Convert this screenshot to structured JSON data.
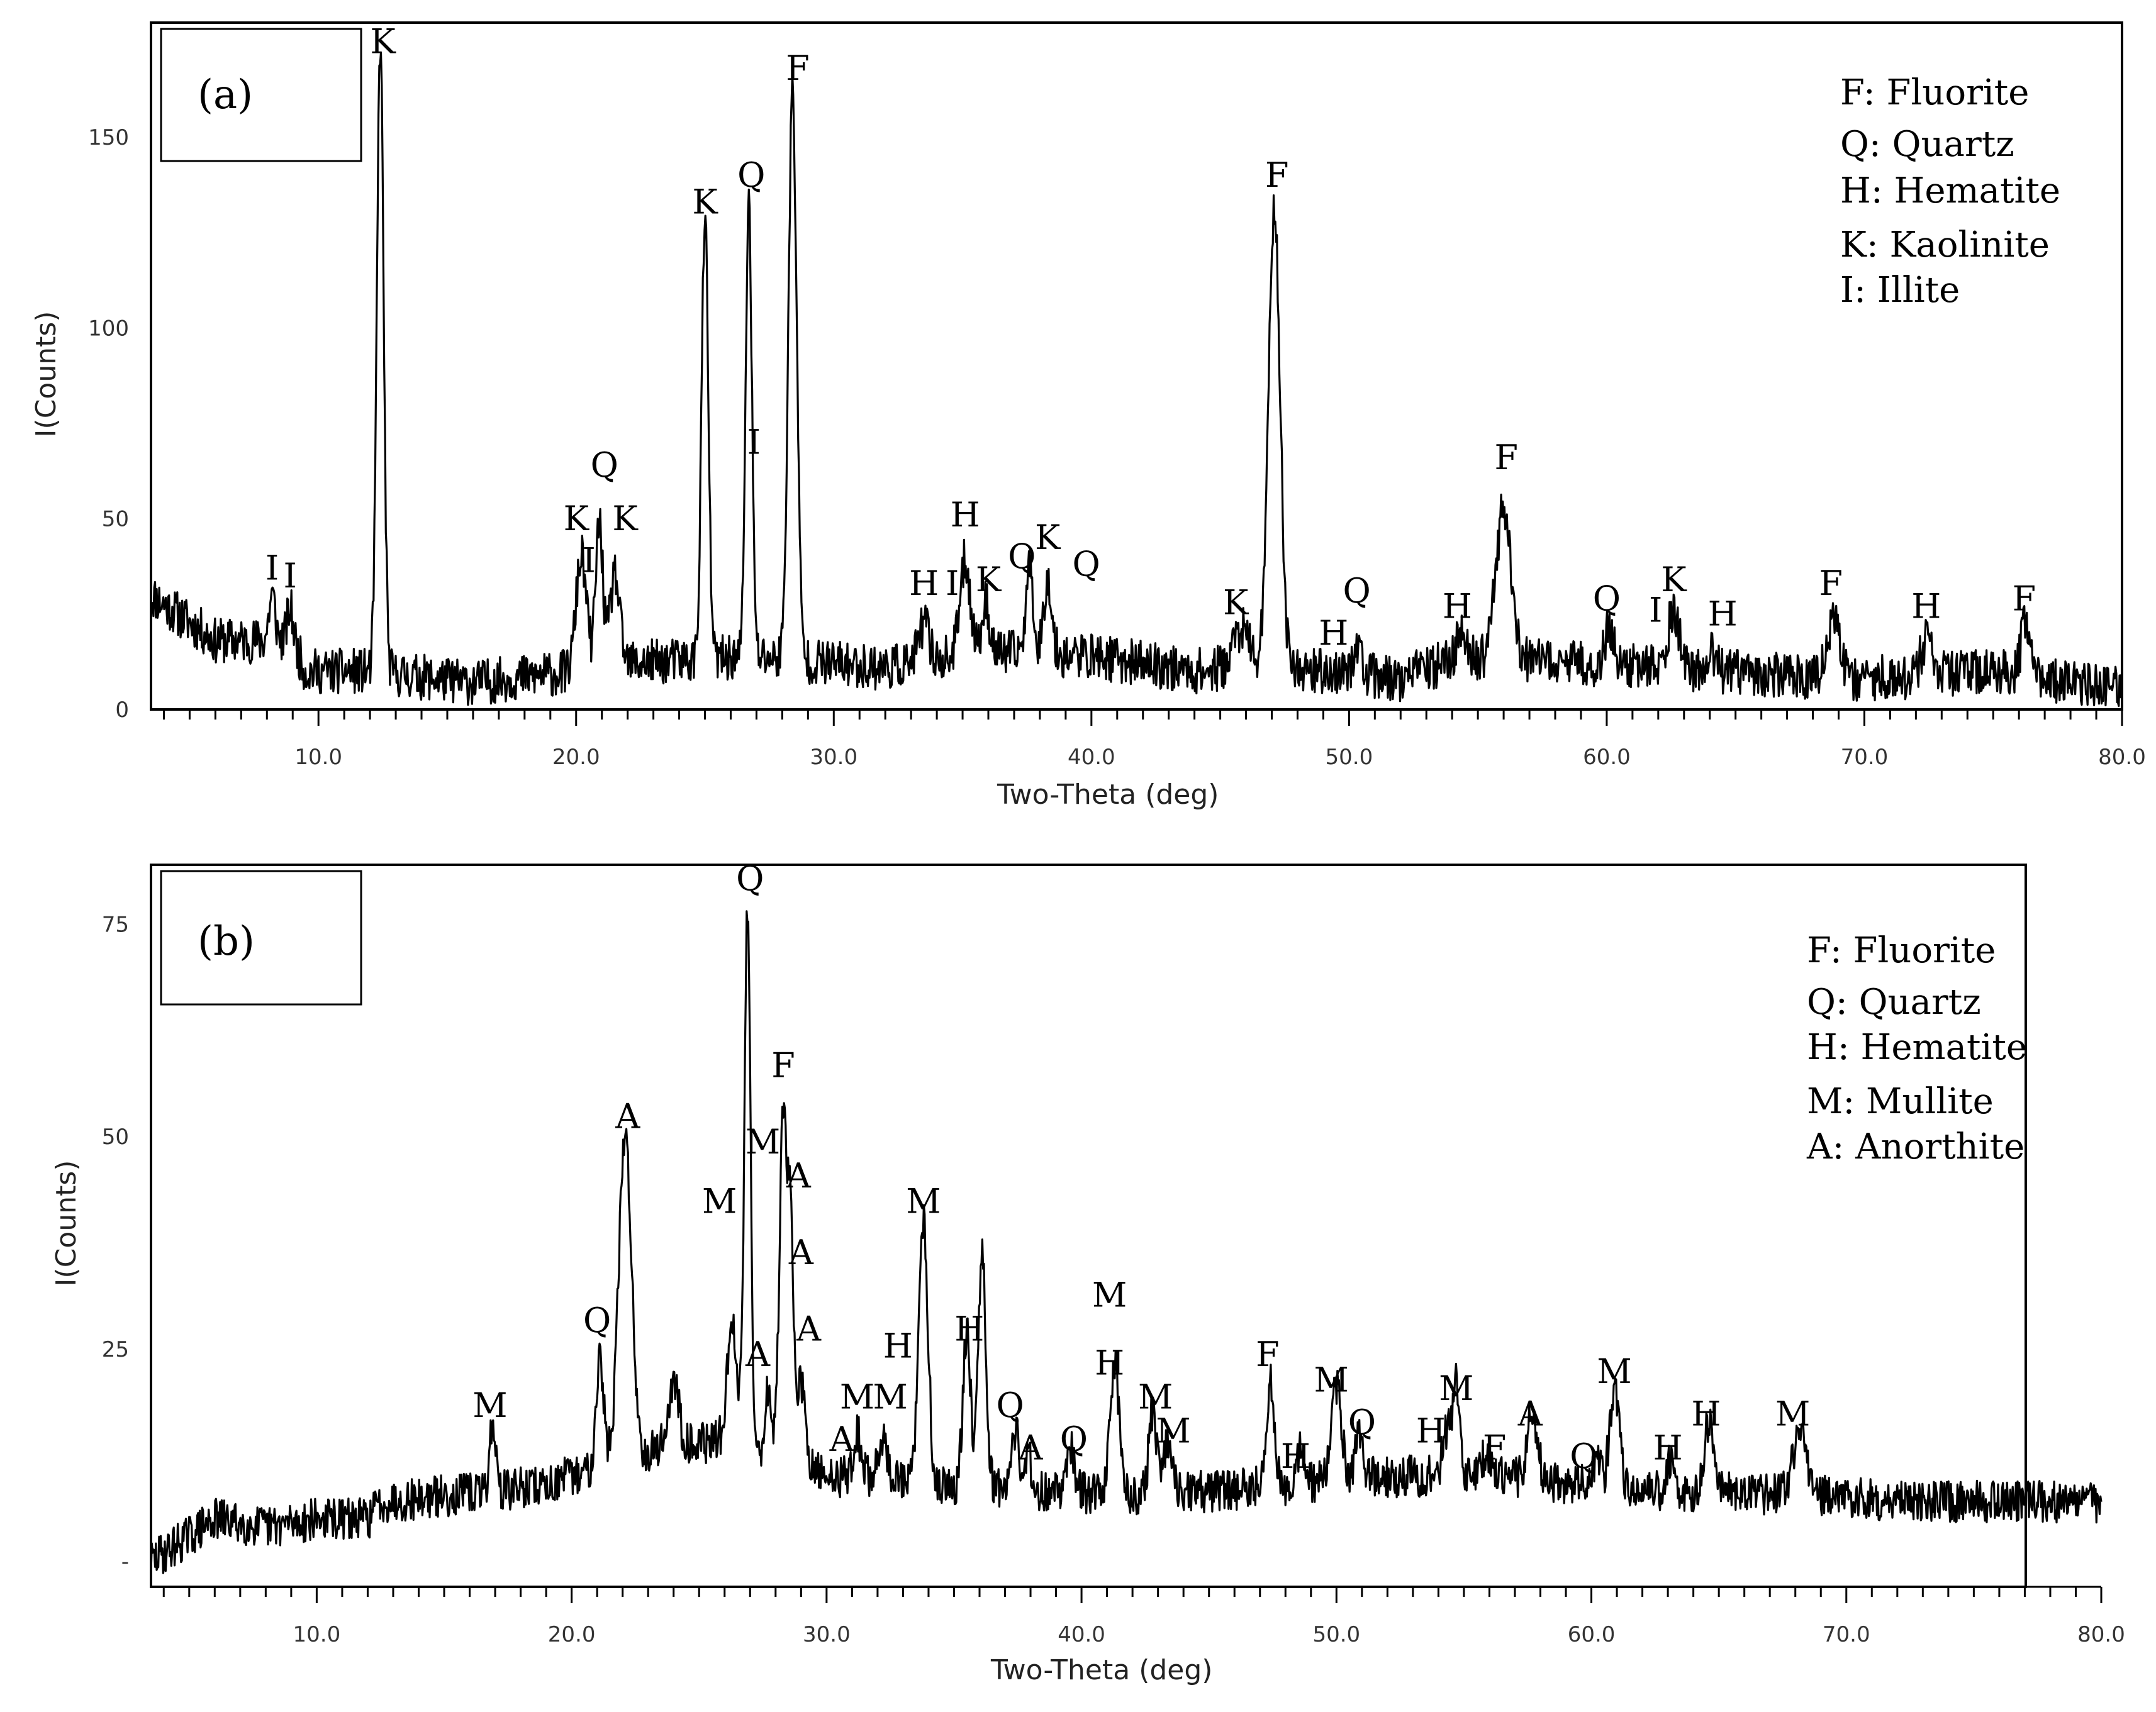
{
  "chart_data": [
    {
      "type": "line",
      "panel_label": "(a)",
      "xlabel": "Two-Theta (deg)",
      "ylabel": "I(Counts)",
      "xlim": [
        3.5,
        80.0
      ],
      "ylim": [
        0,
        180
      ],
      "x_ticks": [
        10.0,
        20.0,
        30.0,
        40.0,
        50.0,
        60.0,
        70.0,
        80.0
      ],
      "x_tick_labels": [
        "10.0",
        "20.0",
        "30.0",
        "40.0",
        "50.0",
        "60.0",
        "70.0",
        "80.0"
      ],
      "y_ticks": [
        0,
        50,
        100,
        150
      ],
      "y_tick_labels": [
        "0",
        "50",
        "100",
        "150"
      ],
      "legend": [
        "F: Fluorite",
        "Q: Quartz",
        "H: Hematite",
        "K: Kaolinite",
        "I: Illite"
      ],
      "baseline": [
        [
          3.5,
          30
        ],
        [
          6,
          18
        ],
        [
          9,
          18
        ],
        [
          9.5,
          10
        ],
        [
          12,
          10
        ],
        [
          16,
          7
        ],
        [
          20,
          10
        ],
        [
          22,
          12
        ],
        [
          27,
          14
        ],
        [
          30,
          12
        ],
        [
          32,
          11
        ],
        [
          36,
          15
        ],
        [
          40,
          14
        ],
        [
          44,
          10
        ],
        [
          47,
          12
        ],
        [
          49,
          10
        ],
        [
          52,
          8
        ],
        [
          54,
          13
        ],
        [
          60,
          12
        ],
        [
          64,
          10
        ],
        [
          70,
          8
        ],
        [
          75,
          10
        ],
        [
          80,
          5
        ]
      ],
      "noise_amplitude": 6,
      "peaks": [
        {
          "x": 8.2,
          "y": 12,
          "w": 0.12
        },
        {
          "x": 8.9,
          "y": 8,
          "w": 0.12
        },
        {
          "x": 12.4,
          "y": 165,
          "w": 0.13
        },
        {
          "x": 20.2,
          "y": 30,
          "w": 0.2
        },
        {
          "x": 20.9,
          "y": 38,
          "w": 0.14
        },
        {
          "x": 21.5,
          "y": 24,
          "w": 0.18
        },
        {
          "x": 25.0,
          "y": 115,
          "w": 0.13
        },
        {
          "x": 26.7,
          "y": 119,
          "w": 0.12
        },
        {
          "x": 28.4,
          "y": 149,
          "w": 0.16
        },
        {
          "x": 33.5,
          "y": 10,
          "w": 0.2
        },
        {
          "x": 35.1,
          "y": 25,
          "w": 0.2
        },
        {
          "x": 35.9,
          "y": 13,
          "w": 0.15
        },
        {
          "x": 37.6,
          "y": 22,
          "w": 0.15
        },
        {
          "x": 38.3,
          "y": 20,
          "w": 0.15
        },
        {
          "x": 45.8,
          "y": 10,
          "w": 0.3
        },
        {
          "x": 47.1,
          "y": 120,
          "w": 0.22
        },
        {
          "x": 50.3,
          "y": 8,
          "w": 0.15
        },
        {
          "x": 54.4,
          "y": 8,
          "w": 0.2
        },
        {
          "x": 56.0,
          "y": 40,
          "w": 0.3
        },
        {
          "x": 60.1,
          "y": 10,
          "w": 0.15
        },
        {
          "x": 62.6,
          "y": 16,
          "w": 0.2
        },
        {
          "x": 64.1,
          "y": 5,
          "w": 0.15
        },
        {
          "x": 68.8,
          "y": 14,
          "w": 0.25
        },
        {
          "x": 72.4,
          "y": 9,
          "w": 0.2
        },
        {
          "x": 76.3,
          "y": 15,
          "w": 0.2
        }
      ],
      "peak_labels": [
        {
          "text": "I",
          "x": 8.2,
          "y": 34
        },
        {
          "text": "I",
          "x": 8.9,
          "y": 32
        },
        {
          "text": "K",
          "x": 12.5,
          "y": 172
        },
        {
          "text": "K",
          "x": 20.0,
          "y": 47
        },
        {
          "text": "I",
          "x": 20.5,
          "y": 36
        },
        {
          "text": "Q",
          "x": 21.1,
          "y": 61
        },
        {
          "text": "K",
          "x": 21.9,
          "y": 47
        },
        {
          "text": "K",
          "x": 25.0,
          "y": 130
        },
        {
          "text": "I",
          "x": 26.9,
          "y": 67
        },
        {
          "text": "Q",
          "x": 26.8,
          "y": 137
        },
        {
          "text": "F",
          "x": 28.6,
          "y": 165
        },
        {
          "text": "H",
          "x": 33.5,
          "y": 30
        },
        {
          "text": "I",
          "x": 34.6,
          "y": 30
        },
        {
          "text": "H",
          "x": 35.1,
          "y": 48
        },
        {
          "text": "K",
          "x": 36.0,
          "y": 31
        },
        {
          "text": "Q",
          "x": 37.3,
          "y": 37
        },
        {
          "text": "K",
          "x": 38.3,
          "y": 42
        },
        {
          "text": "Q",
          "x": 39.8,
          "y": 35
        },
        {
          "text": "K",
          "x": 45.6,
          "y": 25
        },
        {
          "text": "F",
          "x": 47.2,
          "y": 137
        },
        {
          "text": "H",
          "x": 49.4,
          "y": 17
        },
        {
          "text": "Q",
          "x": 50.3,
          "y": 28
        },
        {
          "text": "H",
          "x": 54.2,
          "y": 24
        },
        {
          "text": "F",
          "x": 56.1,
          "y": 63
        },
        {
          "text": "Q",
          "x": 60.0,
          "y": 26
        },
        {
          "text": "I",
          "x": 61.9,
          "y": 23
        },
        {
          "text": "K",
          "x": 62.6,
          "y": 31
        },
        {
          "text": "H",
          "x": 64.5,
          "y": 22
        },
        {
          "text": "F",
          "x": 68.7,
          "y": 30
        },
        {
          "text": "H",
          "x": 72.4,
          "y": 24
        },
        {
          "text": "F",
          "x": 76.2,
          "y": 26
        }
      ]
    },
    {
      "type": "line",
      "panel_label": "(b)",
      "xlabel": "Two-Theta (deg)",
      "ylabel": "I(Counts)",
      "xlim": [
        3.5,
        80.0
      ],
      "ylim": [
        -3,
        82
      ],
      "x_ticks": [
        10.0,
        20.0,
        30.0,
        40.0,
        50.0,
        60.0,
        70.0,
        80.0
      ],
      "x_tick_labels": [
        "10.0",
        "20.0",
        "30.0",
        "40.0",
        "50.0",
        "60.0",
        "70.0",
        "80.0"
      ],
      "y_ticks": [
        0,
        25,
        50,
        75
      ],
      "y_tick_labels": [
        "-",
        "25",
        "50",
        "75"
      ],
      "legend": [
        "F: Fluorite",
        "Q: Quartz",
        "H: Hematite",
        "M: Mullite",
        "A: Anorthite"
      ],
      "baseline": [
        [
          3.5,
          0
        ],
        [
          5,
          3
        ],
        [
          6,
          5
        ],
        [
          8,
          4
        ],
        [
          10,
          5
        ],
        [
          12,
          5
        ],
        [
          12.5,
          7
        ],
        [
          16,
          8
        ],
        [
          19,
          9
        ],
        [
          21,
          11
        ],
        [
          24,
          14
        ],
        [
          26,
          14
        ],
        [
          28,
          12
        ],
        [
          30,
          10
        ],
        [
          32,
          10
        ],
        [
          34,
          9
        ],
        [
          36,
          9
        ],
        [
          40,
          8
        ],
        [
          44,
          8
        ],
        [
          48,
          9
        ],
        [
          52,
          10
        ],
        [
          56,
          10
        ],
        [
          60,
          9
        ],
        [
          64,
          8
        ],
        [
          68,
          8
        ],
        [
          72,
          7
        ],
        [
          76,
          7
        ],
        [
          80,
          7
        ]
      ],
      "noise_amplitude": 2.5,
      "peaks": [
        {
          "x": 16.9,
          "y": 8,
          "w": 0.12
        },
        {
          "x": 21.1,
          "y": 13,
          "w": 0.15
        },
        {
          "x": 22.1,
          "y": 38,
          "w": 0.25
        },
        {
          "x": 24.0,
          "y": 7,
          "w": 0.2
        },
        {
          "x": 26.3,
          "y": 14,
          "w": 0.2
        },
        {
          "x": 26.9,
          "y": 64,
          "w": 0.12
        },
        {
          "x": 27.7,
          "y": 8,
          "w": 0.12
        },
        {
          "x": 28.3,
          "y": 40,
          "w": 0.15
        },
        {
          "x": 28.6,
          "y": 25,
          "w": 0.12
        },
        {
          "x": 29.0,
          "y": 10,
          "w": 0.15
        },
        {
          "x": 31.2,
          "y": 5,
          "w": 0.15
        },
        {
          "x": 32.2,
          "y": 5,
          "w": 0.15
        },
        {
          "x": 33.8,
          "y": 31,
          "w": 0.18
        },
        {
          "x": 35.5,
          "y": 18,
          "w": 0.15
        },
        {
          "x": 36.1,
          "y": 28,
          "w": 0.15
        },
        {
          "x": 37.4,
          "y": 7,
          "w": 0.15
        },
        {
          "x": 37.9,
          "y": 4,
          "w": 0.12
        },
        {
          "x": 39.6,
          "y": 5,
          "w": 0.15
        },
        {
          "x": 41.3,
          "y": 15,
          "w": 0.18
        },
        {
          "x": 42.8,
          "y": 10,
          "w": 0.15
        },
        {
          "x": 43.4,
          "y": 6,
          "w": 0.15
        },
        {
          "x": 47.4,
          "y": 12,
          "w": 0.15
        },
        {
          "x": 48.6,
          "y": 4,
          "w": 0.15
        },
        {
          "x": 50.0,
          "y": 11,
          "w": 0.2
        },
        {
          "x": 50.9,
          "y": 5,
          "w": 0.15
        },
        {
          "x": 54.3,
          "y": 5,
          "w": 0.15
        },
        {
          "x": 54.7,
          "y": 11,
          "w": 0.15
        },
        {
          "x": 55.9,
          "y": 3,
          "w": 0.15
        },
        {
          "x": 57.7,
          "y": 8,
          "w": 0.2
        },
        {
          "x": 60.2,
          "y": 3,
          "w": 0.15
        },
        {
          "x": 60.9,
          "y": 12,
          "w": 0.18
        },
        {
          "x": 63.1,
          "y": 4,
          "w": 0.15
        },
        {
          "x": 64.6,
          "y": 8,
          "w": 0.18
        },
        {
          "x": 68.2,
          "y": 8,
          "w": 0.25
        }
      ],
      "peak_labels": [
        {
          "text": "M",
          "x": 16.8,
          "y": 17
        },
        {
          "text": "Q",
          "x": 21.0,
          "y": 27
        },
        {
          "text": "A",
          "x": 22.2,
          "y": 51
        },
        {
          "text": "M",
          "x": 25.8,
          "y": 41
        },
        {
          "text": "A",
          "x": 27.3,
          "y": 23
        },
        {
          "text": "Q",
          "x": 27.0,
          "y": 79
        },
        {
          "text": "M",
          "x": 27.5,
          "y": 48
        },
        {
          "text": "F",
          "x": 28.3,
          "y": 57
        },
        {
          "text": "A",
          "x": 28.9,
          "y": 44
        },
        {
          "text": "A",
          "x": 29.0,
          "y": 35
        },
        {
          "text": "A",
          "x": 29.3,
          "y": 26
        },
        {
          "text": "A",
          "x": 30.6,
          "y": 13
        },
        {
          "text": "M",
          "x": 31.2,
          "y": 18
        },
        {
          "text": "M",
          "x": 32.5,
          "y": 18
        },
        {
          "text": "H",
          "x": 32.8,
          "y": 24
        },
        {
          "text": "M",
          "x": 33.8,
          "y": 41
        },
        {
          "text": "H",
          "x": 35.6,
          "y": 26
        },
        {
          "text": "Q",
          "x": 37.2,
          "y": 17
        },
        {
          "text": "A",
          "x": 38.0,
          "y": 12
        },
        {
          "text": "Q",
          "x": 39.7,
          "y": 13
        },
        {
          "text": "M",
          "x": 41.1,
          "y": 30
        },
        {
          "text": "H",
          "x": 41.1,
          "y": 22
        },
        {
          "text": "M",
          "x": 42.9,
          "y": 18
        },
        {
          "text": "M",
          "x": 43.6,
          "y": 14
        },
        {
          "text": "F",
          "x": 47.3,
          "y": 23
        },
        {
          "text": "H",
          "x": 48.4,
          "y": 11
        },
        {
          "text": "M",
          "x": 49.8,
          "y": 20
        },
        {
          "text": "Q",
          "x": 51.0,
          "y": 15
        },
        {
          "text": "H",
          "x": 53.7,
          "y": 14
        },
        {
          "text": "M",
          "x": 54.7,
          "y": 19
        },
        {
          "text": "F",
          "x": 56.2,
          "y": 12
        },
        {
          "text": "A",
          "x": 57.6,
          "y": 16
        },
        {
          "text": "Q",
          "x": 59.7,
          "y": 11
        },
        {
          "text": "M",
          "x": 60.9,
          "y": 21
        },
        {
          "text": "H",
          "x": 63.0,
          "y": 12
        },
        {
          "text": "H",
          "x": 64.5,
          "y": 16
        },
        {
          "text": "M",
          "x": 67.9,
          "y": 16
        }
      ]
    }
  ]
}
